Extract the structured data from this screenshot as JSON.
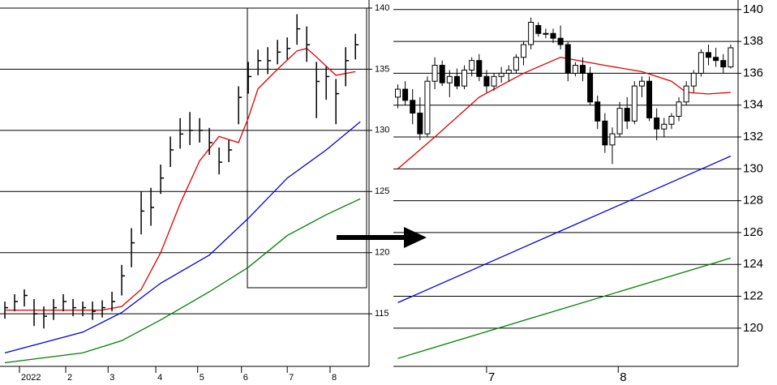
{
  "chart_data": [
    {
      "type": "ohlc",
      "high": [
        116,
        116.6,
        117,
        116.2,
        115.6,
        116.2,
        116.6,
        116.2,
        116,
        116,
        116.1,
        116.8,
        119,
        122,
        125,
        125.3,
        127.2,
        129.5,
        131,
        131.5,
        131,
        130.2,
        128.6,
        129.2,
        133.6,
        135.6,
        136.6,
        136.8,
        137.4,
        137.6,
        139.5,
        138.5,
        135.6,
        135.2,
        134.2,
        136.8,
        137.9
      ],
      "low": [
        114.6,
        115.2,
        115.6,
        114,
        113.8,
        114.5,
        115.2,
        114.8,
        114.8,
        114.5,
        114.7,
        115.2,
        116.5,
        118.8,
        121.5,
        122.2,
        124.8,
        127,
        128.5,
        128.8,
        129,
        128,
        126.4,
        127.4,
        130.5,
        133,
        134.5,
        134.6,
        135.4,
        135.8,
        137,
        135.6,
        131,
        132.5,
        130.5,
        133.6,
        135.8
      ],
      "close": [
        115.5,
        116,
        116.5,
        115,
        114.8,
        115.5,
        116,
        115.5,
        115.5,
        115.2,
        115.5,
        116,
        118.1,
        120.8,
        123.4,
        123.7,
        126.1,
        128.4,
        129.7,
        130,
        130,
        129,
        127.4,
        128.4,
        132.7,
        134.4,
        135.7,
        135.7,
        136.4,
        136.7,
        138.3,
        137,
        134,
        134.4,
        133,
        135.7,
        137
      ],
      "series": [
        {
          "color": "#e00000",
          "x": [
            0,
            10,
            12,
            14,
            16,
            18,
            20,
            22,
            24,
            25,
            26,
            28,
            30,
            31,
            32,
            34,
            36
          ],
          "values": [
            115.3,
            115.3,
            115.6,
            117,
            120,
            124,
            127.5,
            129.5,
            129,
            131,
            133.4,
            135,
            136.5,
            136.7,
            136,
            134.5,
            134.8
          ]
        },
        {
          "color": "#0000e0",
          "x": [
            0,
            8,
            12,
            16,
            21,
            25,
            29,
            33,
            36.5
          ],
          "values": [
            111.8,
            113.5,
            115.1,
            117.5,
            119.8,
            122.8,
            126.1,
            128.4,
            130.7
          ]
        },
        {
          "color": "#008000",
          "x": [
            0,
            8,
            12,
            16,
            21,
            25,
            29,
            33,
            36.5
          ],
          "values": [
            111,
            111.8,
            112.8,
            114.5,
            116.8,
            118.8,
            121.4,
            123.1,
            124.4
          ]
        }
      ],
      "xlim": [
        -0.5,
        37.4
      ],
      "xticks": [
        {
          "value": 1.5,
          "label": "2022"
        },
        {
          "value": 6.25,
          "label": "2"
        },
        {
          "value": 10.6,
          "label": "3"
        },
        {
          "value": 15.5,
          "label": "4"
        },
        {
          "value": 19.8,
          "label": "5"
        },
        {
          "value": 24.3,
          "label": "6"
        },
        {
          "value": 29,
          "label": "7"
        },
        {
          "value": 33.4,
          "label": "8"
        }
      ],
      "ylim": [
        110.7,
        140.66
      ],
      "yticks": [
        115,
        120,
        125,
        130,
        135,
        140
      ],
      "grid": true
    },
    {
      "type": "candlestick",
      "open": [
        134.5,
        135,
        134.3,
        133.5,
        132.2,
        135.5,
        136.5,
        135.4,
        135.8,
        135.2,
        136.2,
        136.8,
        135.8,
        135.2,
        135.8,
        136,
        136.2,
        137,
        137.8,
        139,
        138.5,
        138.5,
        138.2,
        137.8,
        136,
        136.5,
        136,
        134.2,
        133,
        131.5,
        132.2,
        133.8,
        133,
        135.2,
        135.5,
        133.2,
        132.5,
        132.8,
        133.3,
        134.2,
        135.2,
        136,
        137.3,
        137,
        136.8,
        136.4
      ],
      "high": [
        135.3,
        135.5,
        135,
        134.5,
        135.8,
        137,
        136.8,
        136.2,
        136.3,
        136.5,
        137,
        137.2,
        136.2,
        136,
        136.4,
        136.5,
        137.2,
        138,
        139.5,
        139.2,
        138.8,
        138.8,
        139,
        138,
        136.7,
        137,
        136.4,
        134.6,
        133.5,
        132.6,
        134.2,
        134.5,
        135.5,
        135.8,
        135.8,
        133.8,
        133.2,
        133.5,
        134.5,
        135.5,
        136.2,
        137.5,
        137.8,
        137.6,
        137.2,
        137.8
      ],
      "low": [
        133.8,
        134,
        132.8,
        131.8,
        132,
        135,
        135.2,
        134.5,
        135,
        135,
        135.8,
        135.5,
        134.8,
        134.9,
        135.4,
        135.5,
        136,
        136.5,
        137.5,
        138.3,
        138.2,
        137.9,
        137.5,
        135.5,
        135.8,
        135.5,
        134,
        132.5,
        131,
        130.3,
        132,
        132.5,
        132.8,
        134.5,
        133,
        131.8,
        132,
        132.5,
        133,
        134,
        134.8,
        135.8,
        136.5,
        136.4,
        136,
        136.3
      ],
      "close": [
        135,
        134.3,
        133.5,
        132.2,
        135.5,
        136.5,
        135.4,
        135.8,
        135.2,
        136.2,
        136.8,
        135.8,
        135.2,
        135.8,
        136,
        136.2,
        137,
        137.8,
        139.2,
        138.5,
        138.5,
        138.2,
        137.8,
        136,
        136.5,
        136,
        134.2,
        133,
        131.5,
        132.2,
        133.8,
        133,
        135.2,
        135.5,
        133.2,
        132.5,
        132.8,
        133.3,
        134.2,
        135.2,
        136,
        137.3,
        137,
        136.8,
        136.4,
        137.6
      ],
      "series": [
        {
          "color": "#e00000",
          "x": [
            0,
            5,
            11,
            17,
            22,
            28,
            33,
            37,
            39,
            42,
            45
          ],
          "values": [
            130,
            132,
            134.5,
            136,
            137,
            136.5,
            136.1,
            135.5,
            134.8,
            134.7,
            134.8
          ]
        },
        {
          "color": "#0000e0",
          "x": [
            0,
            22,
            45
          ],
          "values": [
            121.6,
            126.1,
            130.8
          ]
        },
        {
          "color": "#008000",
          "x": [
            0,
            45
          ],
          "values": [
            118.1,
            124.4
          ]
        }
      ],
      "xlim": [
        -0.6,
        46
      ],
      "xticks": [
        {
          "value": 12,
          "label": "7"
        },
        {
          "value": 29.8,
          "label": "8"
        }
      ],
      "ylim": [
        117.6,
        140.6
      ],
      "yticks": [
        120,
        122,
        124,
        126,
        128,
        130,
        132,
        134,
        136,
        138,
        140
      ],
      "grid": true
    }
  ]
}
